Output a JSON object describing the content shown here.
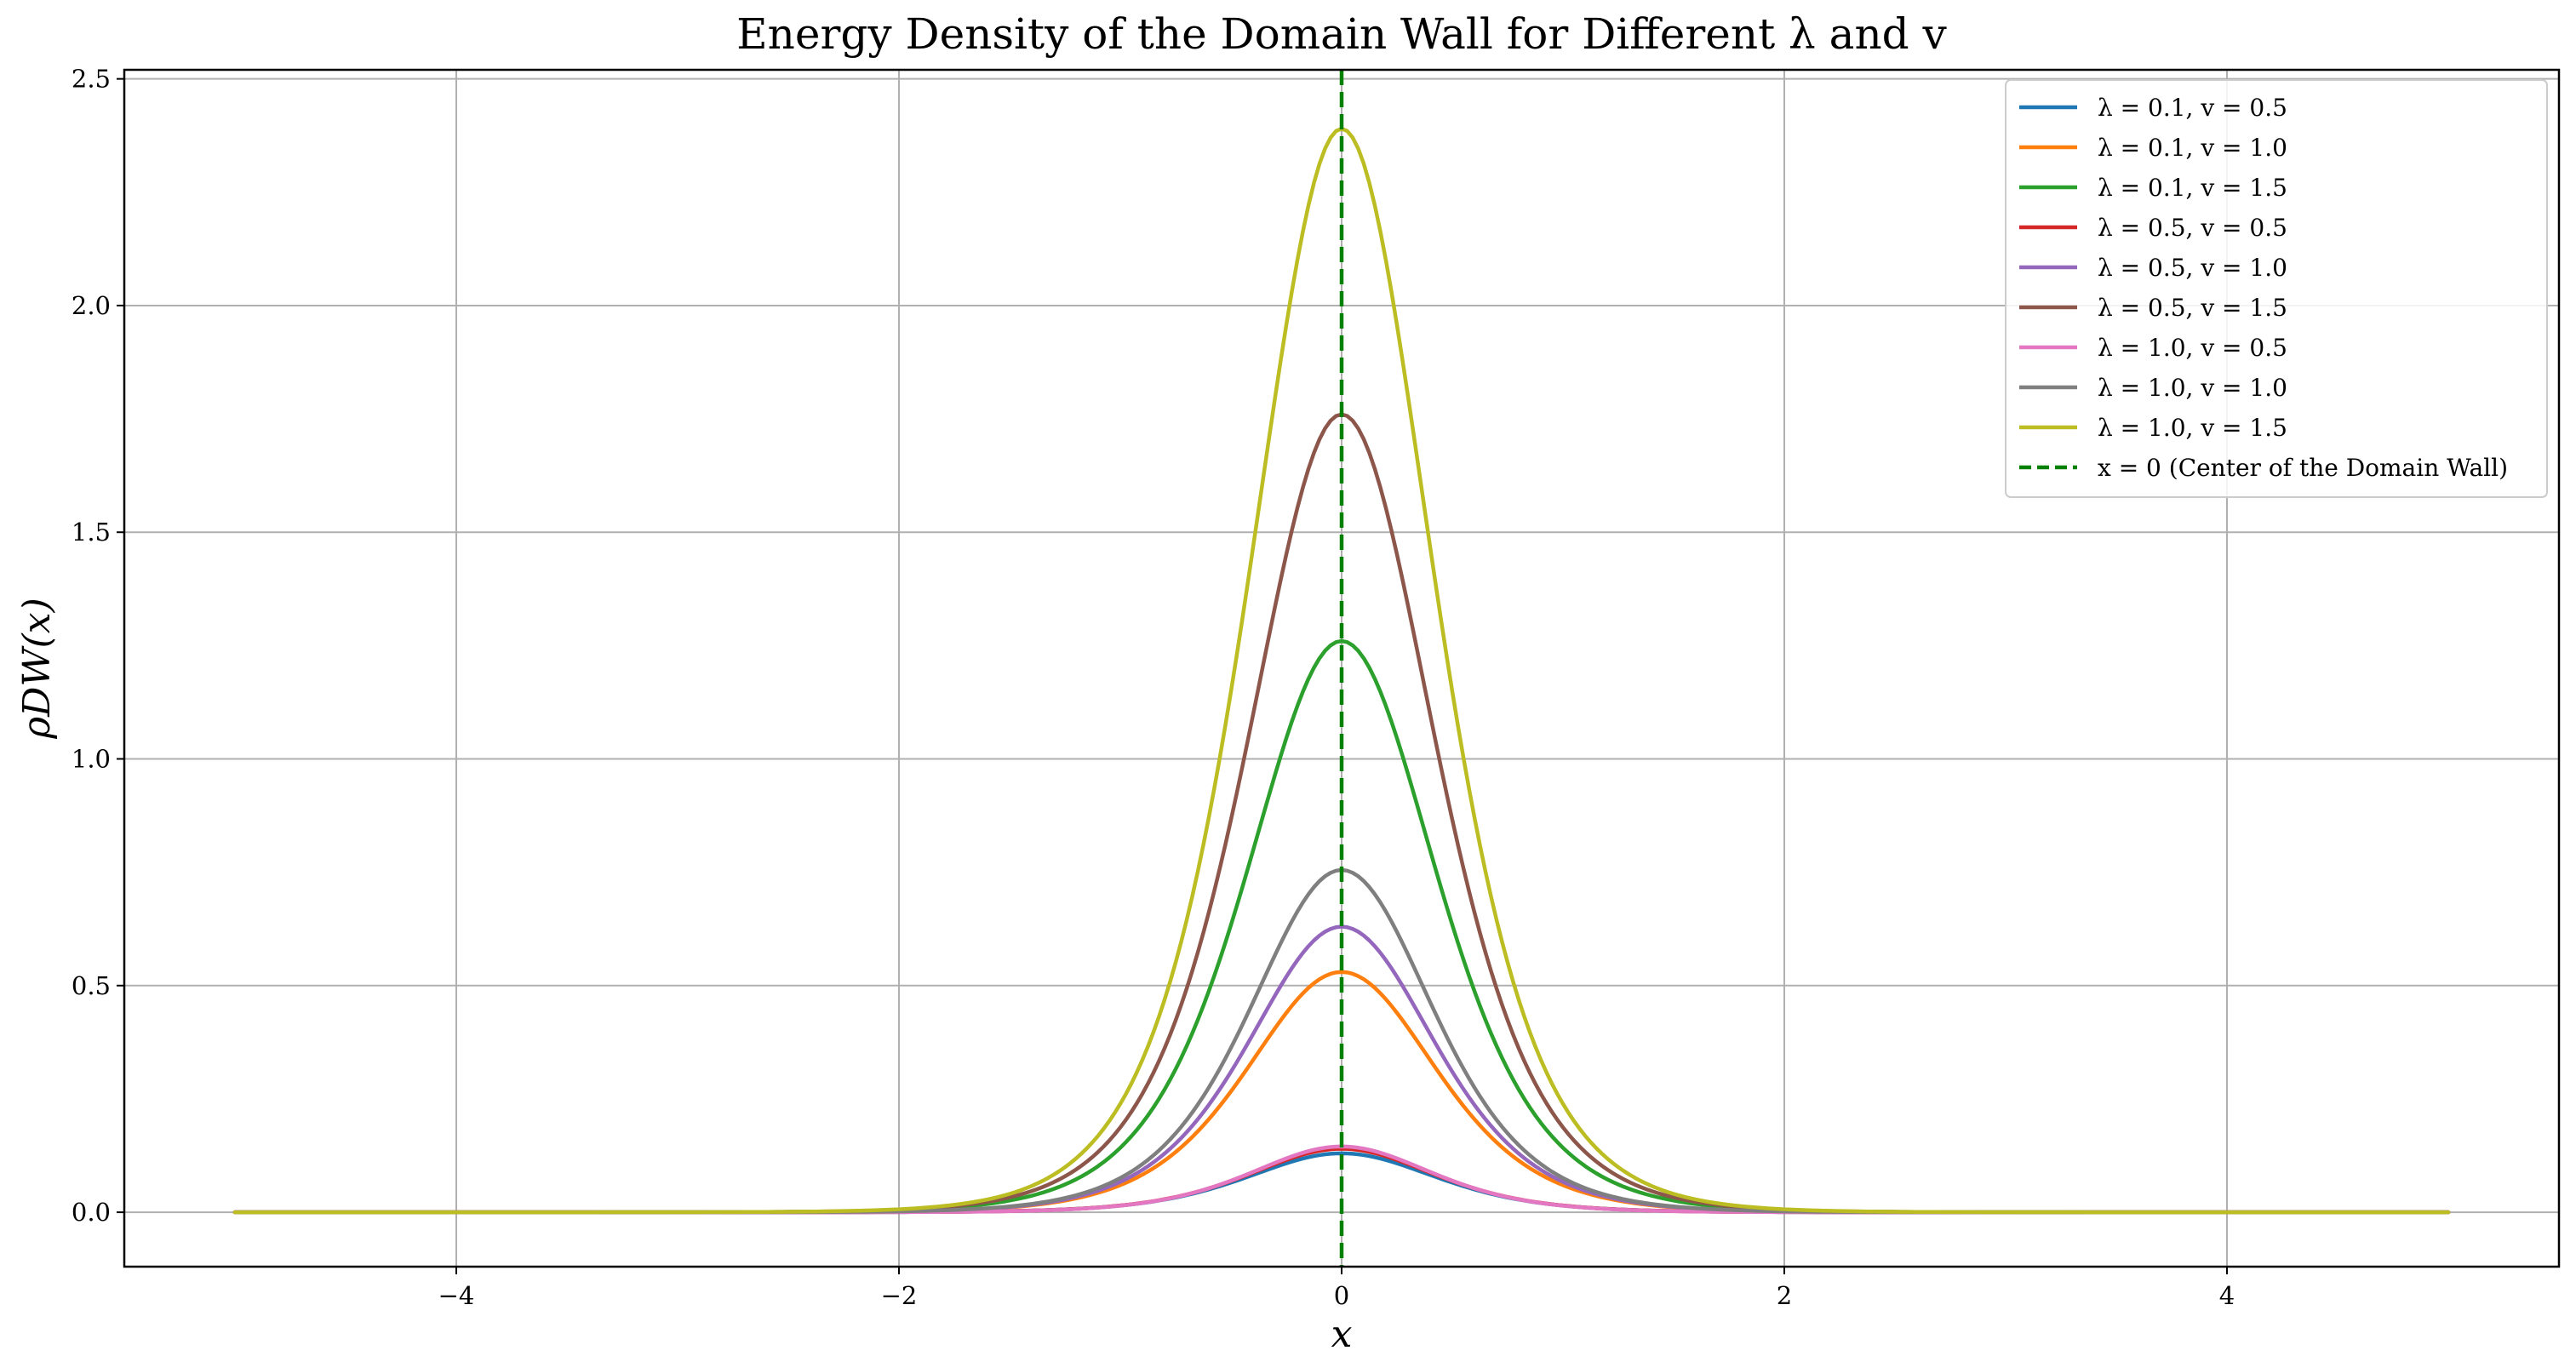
{
  "chart_data": {
    "type": "line",
    "title": "Energy Density of the Domain Wall for Different λ and v",
    "xlabel": "x",
    "ylabel": "ρDW(x)",
    "xlim": [
      -5.5,
      5.5
    ],
    "ylim": [
      -0.12,
      2.52
    ],
    "xticks": [
      -4,
      -2,
      0,
      2,
      4
    ],
    "xtick_labels": [
      "−4",
      "−2",
      "0",
      "2",
      "4"
    ],
    "yticks": [
      0.0,
      0.5,
      1.0,
      1.5,
      2.0,
      2.5
    ],
    "ytick_labels": [
      "0.0",
      "0.5",
      "1.0",
      "1.5",
      "2.0",
      "2.5"
    ],
    "x_range": [
      -5,
      5
    ],
    "grid": true,
    "legend_position": "top-right",
    "series": [
      {
        "name": "λ = 0.1, v = 0.5",
        "color": "#1f77b4",
        "peak": 0.13,
        "width": 0.57
      },
      {
        "name": "λ = 0.1, v = 1.0",
        "color": "#ff7f0e",
        "peak": 0.53,
        "width": 0.57
      },
      {
        "name": "λ = 0.1, v = 1.5",
        "color": "#2ca02c",
        "peak": 1.26,
        "width": 0.57
      },
      {
        "name": "λ = 0.5, v = 0.5",
        "color": "#d62728",
        "peak": 0.14,
        "width": 0.56
      },
      {
        "name": "λ = 0.5, v = 1.0",
        "color": "#9467bd",
        "peak": 0.63,
        "width": 0.56
      },
      {
        "name": "λ = 0.5, v = 1.5",
        "color": "#8c564b",
        "peak": 1.76,
        "width": 0.56
      },
      {
        "name": "λ = 1.0, v = 0.5",
        "color": "#e377c2",
        "peak": 0.145,
        "width": 0.55
      },
      {
        "name": "λ = 1.0, v = 1.0",
        "color": "#7f7f7f",
        "peak": 0.755,
        "width": 0.55
      },
      {
        "name": "λ = 1.0, v = 1.5",
        "color": "#bcbd22",
        "peak": 2.39,
        "width": 0.55
      }
    ],
    "vline": {
      "x": 0,
      "name": "x = 0 (Center of the Domain Wall)",
      "color": "#008000",
      "style": "dashed"
    }
  }
}
